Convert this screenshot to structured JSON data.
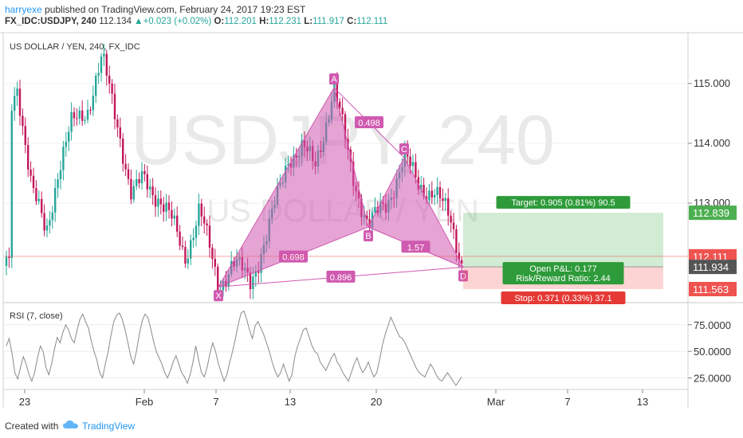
{
  "header": {
    "user": "harryexe",
    "published": "published on TradingView.com, February 24, 2017 19:23 EST",
    "symbol": "FX_IDC:USDJPY, 240",
    "last": "112.134",
    "change": "+0.023 (+0.02%)",
    "o_label": "O:",
    "o": "112.201",
    "h_label": "H:",
    "h": "112.231",
    "l_label": "L:",
    "l": "111.917",
    "c_label": "C:",
    "c": "112.111"
  },
  "footer": {
    "created": "Created with",
    "brand": "TradingView"
  },
  "chart_data": {
    "type": "candlestick",
    "title": "US DOLLAR / YEN, 240, FX_IDC",
    "watermark_main": "USDJPY, 240",
    "watermark_sub": "US DOLLAR / YEN",
    "colors": {
      "up": "#26a69a",
      "down": "#c2185b",
      "pattern": "#d05ab0",
      "target": "#4caf50",
      "stop": "#ef5350"
    },
    "price_axis": {
      "ticks": [
        115.0,
        114.0,
        113.0
      ],
      "ylim": [
        111.35,
        115.85
      ]
    },
    "price_tick_labels": [
      "115.000",
      "114.000",
      "113.000"
    ],
    "price_tags": [
      {
        "label": "112.839",
        "value": 112.839,
        "color": "#4caf50"
      },
      {
        "label": "112.111",
        "value": 112.111,
        "color": "#ef5350"
      },
      {
        "label": "111.934",
        "value": 111.934,
        "color": "#555555"
      },
      {
        "label": "111.563",
        "value": 111.563,
        "color": "#ef5350"
      }
    ],
    "time_axis": {
      "labels": [
        "23",
        "Feb",
        "7",
        "13",
        "20",
        "Mar",
        "7",
        "13"
      ]
    },
    "pattern_points": [
      {
        "label": "X",
        "price": 111.6
      },
      {
        "label": "A",
        "price": 114.93
      },
      {
        "label": "B",
        "price": 112.6
      },
      {
        "label": "C",
        "price": 113.76
      },
      {
        "label": "D",
        "price": 111.93
      }
    ],
    "pattern_ratios": [
      "0.498",
      "0.698",
      "1.57",
      "0.896"
    ],
    "position": {
      "entry": 111.934,
      "target": 112.839,
      "stop": 111.563,
      "target_text": "Target: 0.905 (0.81%) 90.5",
      "pl_text": "Open P&L: 0.177",
      "rr_text": "Risk/Reward Ratio: 2.44",
      "stop_text": "Stop: 0.371 (0.33%) 37.1"
    },
    "rsi": {
      "title": "RSI (7, close)",
      "tick_labels": [
        "75.0000",
        "50.0000",
        "25.0000"
      ],
      "ticks": [
        75,
        50,
        25
      ],
      "ylim": [
        15,
        95
      ],
      "values": [
        55,
        62,
        48,
        30,
        24,
        35,
        45,
        38,
        28,
        22,
        30,
        44,
        55,
        50,
        35,
        28,
        38,
        52,
        63,
        58,
        68,
        75,
        70,
        62,
        58,
        70,
        80,
        85,
        78,
        72,
        60,
        50,
        42,
        30,
        25,
        38,
        50,
        65,
        78,
        84,
        86,
        80,
        70,
        58,
        45,
        38,
        50,
        66,
        78,
        85,
        82,
        72,
        60,
        50,
        44,
        38,
        30,
        25,
        32,
        40,
        46,
        38,
        30,
        26,
        20,
        28,
        40,
        55,
        42,
        30,
        26,
        35,
        48,
        58,
        50,
        38,
        30,
        22,
        28,
        40,
        50,
        62,
        75,
        86,
        88,
        80,
        70,
        62,
        74,
        78,
        72,
        66,
        58,
        50,
        40,
        32,
        26,
        30,
        38,
        30,
        22,
        28,
        45,
        55,
        62,
        70,
        72,
        64,
        56,
        50,
        48,
        40,
        36,
        32,
        38,
        44,
        48,
        40,
        36,
        30,
        26,
        22,
        30,
        38,
        44,
        36,
        30,
        34,
        40,
        32,
        26,
        30,
        42,
        56,
        66,
        74,
        82,
        76,
        70,
        64,
        62,
        58,
        52,
        46,
        40,
        34,
        30,
        28,
        26,
        32,
        38,
        34,
        28,
        24,
        22,
        26,
        30,
        26,
        22,
        18,
        22,
        26
      ]
    }
  }
}
